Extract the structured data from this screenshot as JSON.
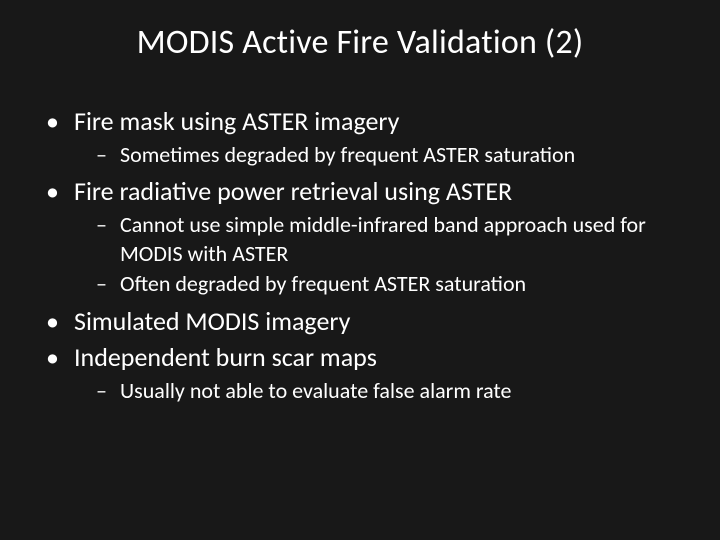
{
  "background_color": "#181818",
  "text_color": "#ffffff",
  "font_family": "Calibri",
  "title": {
    "text": "MODIS Active Fire Validation (2)",
    "fontsize": 34,
    "align": "center"
  },
  "bullets": [
    {
      "text": "Fire mask using ASTER imagery",
      "sub": [
        {
          "text": "Sometimes degraded by frequent ASTER saturation"
        }
      ]
    },
    {
      "text": "Fire radiative power retrieval using ASTER",
      "sub": [
        {
          "text": "Cannot use simple middle-infrared band approach used for MODIS with ASTER"
        },
        {
          "text": "Often degraded by frequent ASTER saturation"
        }
      ]
    },
    {
      "text": "Simulated MODIS imagery",
      "sub": []
    },
    {
      "text": "Independent burn scar maps",
      "sub": [
        {
          "text": "Usually not able to evaluate false alarm rate"
        }
      ]
    }
  ],
  "level1_fontsize": 26,
  "level2_fontsize": 22,
  "bullet_marker_l1": "•",
  "bullet_marker_l2": "–"
}
